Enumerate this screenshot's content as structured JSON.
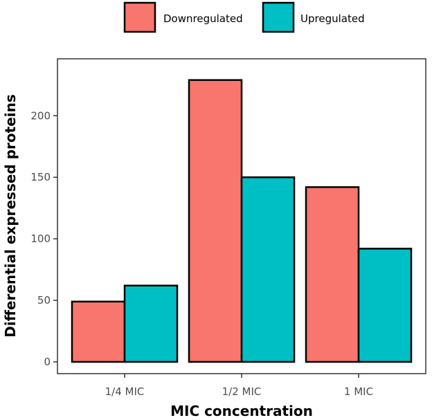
{
  "chart_data": {
    "type": "bar",
    "title": "",
    "xlabel": "MIC concentration",
    "ylabel": "Differential expressed proteins",
    "categories": [
      "1/4 MIC",
      "1/2 MIC",
      "1 MIC"
    ],
    "series": [
      {
        "name": "Downregulated",
        "color": "#F8766D",
        "values": [
          49,
          229,
          142
        ]
      },
      {
        "name": "Upregulated",
        "color": "#00BFC4",
        "values": [
          62,
          150,
          92
        ]
      }
    ],
    "ylim": [
      0,
      240
    ],
    "yticks": [
      0,
      50,
      100,
      150,
      200
    ],
    "ytick_labels": [
      "0",
      "50",
      "100",
      "150",
      "200"
    ],
    "legend_position": "top",
    "grid": false
  }
}
